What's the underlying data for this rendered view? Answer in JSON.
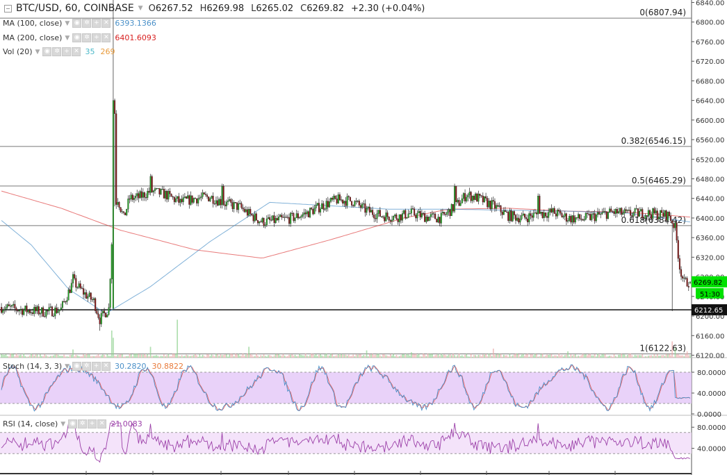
{
  "header": {
    "symbol": "BTC/USD, 60, COINBASE",
    "open_label": "O",
    "open": "6267.52",
    "high_label": "H",
    "high": "6269.98",
    "low_label": "L",
    "low": "6265.02",
    "close_label": "C",
    "close": "6269.82",
    "change": "+2.30 (+0.04%)"
  },
  "indicators": {
    "ma100": {
      "label": "MA (100, close)",
      "value": "6393.1366",
      "color": "#4a90c8"
    },
    "ma200": {
      "label": "MA (200, close)",
      "value": "6401.6093",
      "color": "#d81f1f"
    },
    "vol": {
      "label": "Vol (20)",
      "value1": "35",
      "value2": "269",
      "color1": "#4ab8c8",
      "color2": "#e89a3a"
    },
    "stoch": {
      "label": "Stoch (14, 3, 3)",
      "value1": "30.2820",
      "value2": "30.8822",
      "color1": "#4a90c8",
      "color2": "#e87a3a"
    },
    "rsi": {
      "label": "RSI (14, close)",
      "value": "21.0083",
      "color": "#9b3fa8"
    }
  },
  "colors": {
    "up": "#26a826",
    "down": "#8b1a1a",
    "fib": "#777777",
    "hline": "#111111",
    "price_badge": "#00e100",
    "stoch_band": "#e4c7f7",
    "rsi_band": "#f1dcf9",
    "stoch_k": "#4a90c8",
    "stoch_d": "#e86060",
    "rsi_line": "#9b3fa8"
  },
  "chart_data": {
    "type": "candlestick",
    "price_axis": {
      "range": [
        6115,
        6845
      ],
      "ticks": [
        "6840.00",
        "6800.00",
        "6760.00",
        "6720.00",
        "6680.00",
        "6640.00",
        "6600.00",
        "6560.00",
        "6520.00",
        "6480.00",
        "6440.00",
        "6400.00",
        "6360.00",
        "6320.00",
        "6280.00",
        "6240.00",
        "6200.00",
        "6160.00",
        "6120.00"
      ]
    },
    "price_badge": {
      "value": "6269.82",
      "countdown": "51:30"
    },
    "horizontal_line": {
      "value": 6212.65,
      "label": "6212.65"
    },
    "fib_levels": [
      {
        "label": "0(6807.94)",
        "value": 6807.94
      },
      {
        "label": "0.382(6546.15)",
        "value": 6546.15
      },
      {
        "label": "0.5(6465.29)",
        "value": 6465.29
      },
      {
        "label": "0.618(6384.42)",
        "value": 6384.42
      },
      {
        "label": "1(6122.63)",
        "value": 6122.63
      }
    ],
    "price_anchors": [
      [
        0,
        6218
      ],
      [
        15,
        6212
      ],
      [
        30,
        6208
      ],
      [
        40,
        6214
      ],
      [
        48,
        6270
      ],
      [
        56,
        6245
      ],
      [
        62,
        6230
      ],
      [
        66,
        6193
      ],
      [
        72,
        6215
      ],
      [
        75,
        6420
      ],
      [
        78,
        6440
      ],
      [
        82,
        6400
      ],
      [
        86,
        6440
      ],
      [
        92,
        6442
      ],
      [
        100,
        6455
      ],
      [
        110,
        6448
      ],
      [
        120,
        6432
      ],
      [
        130,
        6440
      ],
      [
        140,
        6443
      ],
      [
        150,
        6430
      ],
      [
        160,
        6422
      ],
      [
        168,
        6404
      ],
      [
        175,
        6392
      ],
      [
        185,
        6395
      ],
      [
        195,
        6400
      ],
      [
        205,
        6410
      ],
      [
        215,
        6425
      ],
      [
        225,
        6437
      ],
      [
        235,
        6435
      ],
      [
        245,
        6415
      ],
      [
        255,
        6405
      ],
      [
        265,
        6402
      ],
      [
        275,
        6410
      ],
      [
        285,
        6402
      ],
      [
        295,
        6400
      ],
      [
        305,
        6425
      ],
      [
        312,
        6448
      ],
      [
        320,
        6440
      ],
      [
        330,
        6425
      ],
      [
        340,
        6405
      ],
      [
        350,
        6400
      ],
      [
        360,
        6408
      ],
      [
        370,
        6412
      ],
      [
        380,
        6400
      ],
      [
        390,
        6398
      ],
      [
        400,
        6405
      ],
      [
        410,
        6412
      ],
      [
        420,
        6408
      ],
      [
        430,
        6410
      ],
      [
        440,
        6408
      ],
      [
        448,
        6405
      ],
      [
        452,
        6380
      ],
      [
        455,
        6300
      ],
      [
        458,
        6268
      ],
      [
        462,
        6270
      ]
    ],
    "candle_spikes": [
      [
        75,
        6660
      ],
      [
        76,
        6618
      ],
      [
        48,
        6290
      ],
      [
        100,
        6490
      ],
      [
        148,
        6470
      ],
      [
        304,
        6470
      ],
      [
        360,
        6450
      ]
    ],
    "wick_spikes": [
      [
        75,
        6845
      ],
      [
        450,
        6210
      ],
      [
        66,
        6170
      ]
    ],
    "ma100_anchors": [
      [
        0,
        6395
      ],
      [
        20,
        6345
      ],
      [
        45,
        6255
      ],
      [
        70,
        6205
      ],
      [
        100,
        6260
      ],
      [
        140,
        6352
      ],
      [
        180,
        6432
      ],
      [
        220,
        6425
      ],
      [
        260,
        6418
      ],
      [
        300,
        6418
      ],
      [
        340,
        6416
      ],
      [
        380,
        6414
      ],
      [
        420,
        6410
      ],
      [
        462,
        6392
      ]
    ],
    "ma200_anchors": [
      [
        0,
        6455
      ],
      [
        40,
        6420
      ],
      [
        80,
        6375
      ],
      [
        130,
        6335
      ],
      [
        175,
        6318
      ],
      [
        220,
        6355
      ],
      [
        270,
        6400
      ],
      [
        300,
        6418
      ],
      [
        340,
        6420
      ],
      [
        380,
        6414
      ],
      [
        420,
        6412
      ],
      [
        462,
        6402
      ]
    ],
    "volume_spikes": [
      [
        0,
        20
      ],
      [
        20,
        22
      ],
      [
        48,
        45
      ],
      [
        74,
        150
      ],
      [
        75,
        110
      ],
      [
        100,
        60
      ],
      [
        118,
        210
      ],
      [
        166,
        60
      ],
      [
        245,
        40
      ],
      [
        275,
        30
      ],
      [
        330,
        50
      ],
      [
        380,
        35
      ],
      [
        450,
        90
      ],
      [
        452,
        55
      ],
      [
        460,
        35
      ]
    ],
    "stoch": {
      "axis": [
        "80.0000",
        "40.0000",
        "0.0000"
      ],
      "band": [
        20,
        80
      ]
    },
    "rsi": {
      "axis": [
        "80.0000",
        "40.0000"
      ],
      "band": [
        30,
        70
      ]
    },
    "bars": 463
  }
}
